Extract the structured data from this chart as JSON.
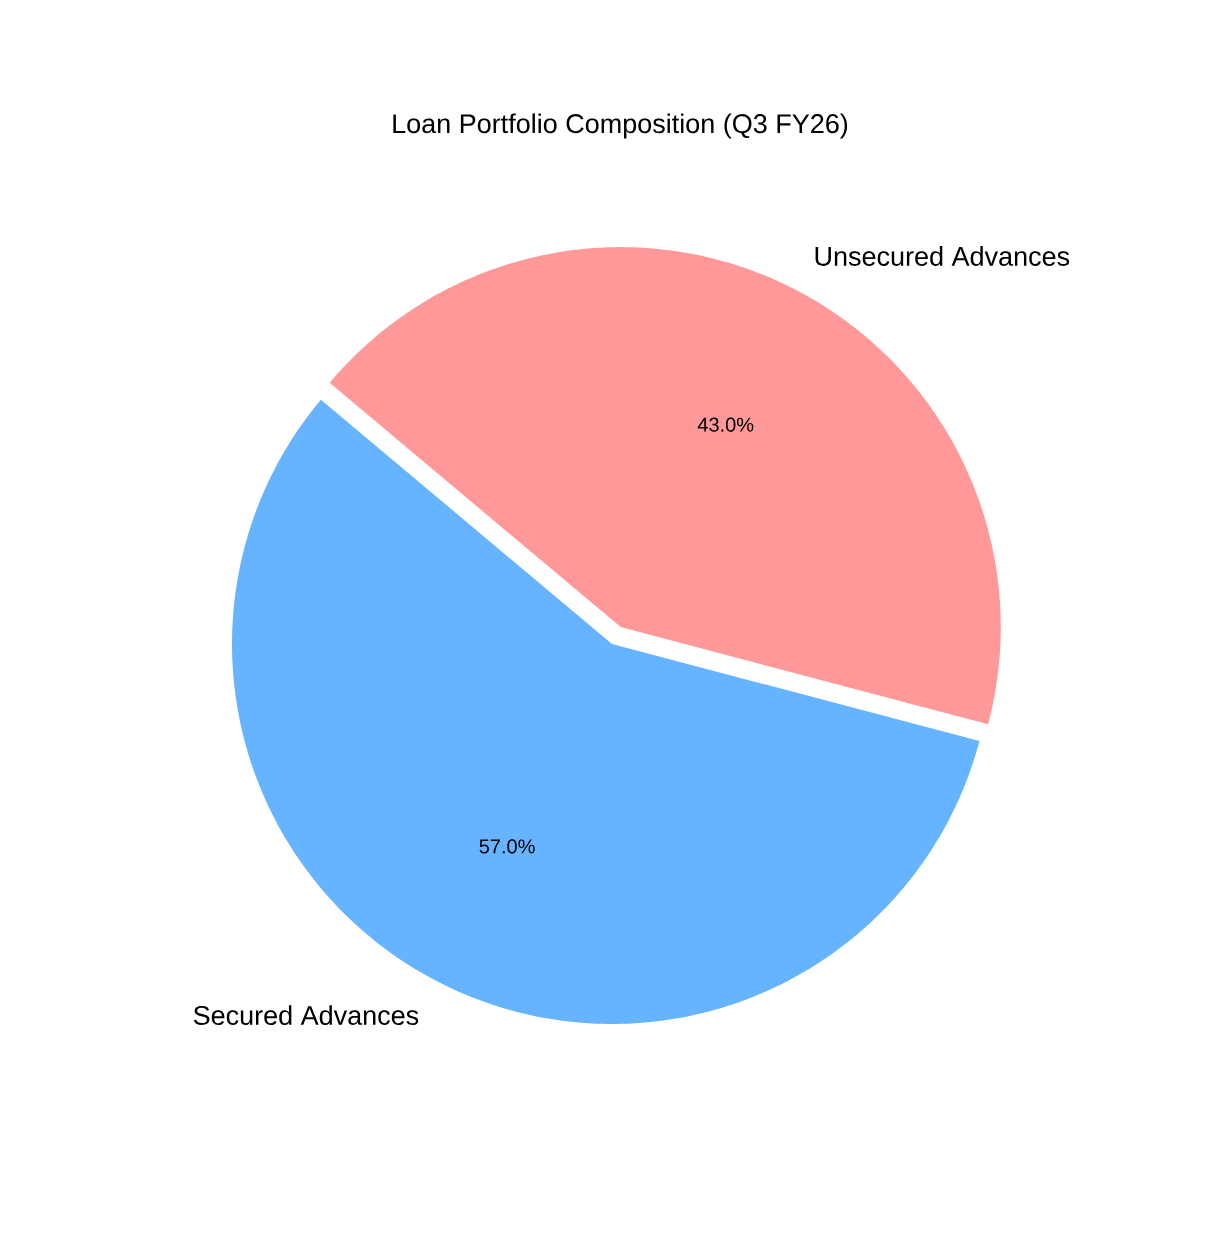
{
  "chart_data": {
    "type": "pie",
    "title": "Loan Portfolio Composition (Q3 FY26)",
    "categories": [
      "Secured Advances",
      "Unsecured Advances"
    ],
    "values": [
      57.0,
      43.0
    ],
    "colors": [
      "#66b3ff",
      "#ff9999"
    ],
    "value_labels": [
      "57.0%",
      "43.0%"
    ]
  }
}
